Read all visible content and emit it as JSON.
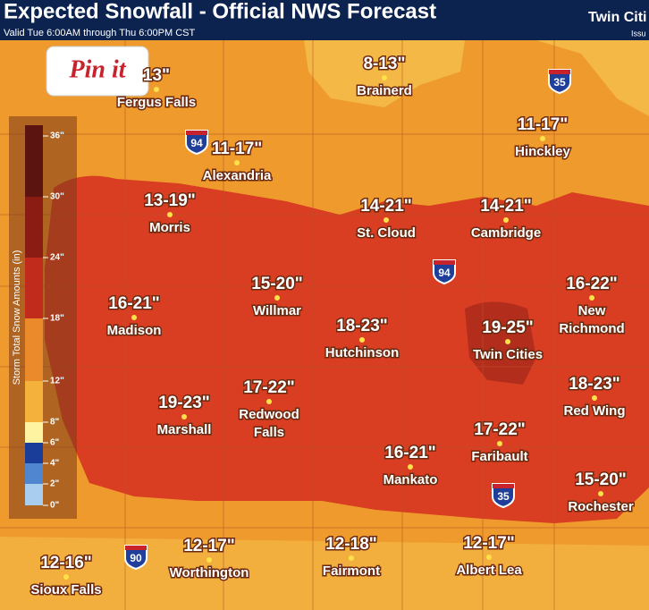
{
  "header": {
    "title": "Expected Snowfall - Official NWS Forecast",
    "subtitle": "Valid Tue 6:00AM through Thu 6:00PM CST",
    "office": "Twin Citi",
    "issued": "Issu"
  },
  "pin": {
    "label": "Pin it"
  },
  "legend": {
    "title": "Storm Total Snow Amounts (in)",
    "labels": [
      "36\"",
      "30\"",
      "24\"",
      "18\"",
      "12\"",
      "8\"",
      "6\"",
      "4\"",
      "2\"",
      "0\""
    ]
  },
  "cities": [
    {
      "forecast": "13\"",
      "name": "Fergus Falls"
    },
    {
      "forecast": "8-13\"",
      "name": "Brainerd"
    },
    {
      "forecast": "11-17\"",
      "name": "Hinckley"
    },
    {
      "forecast": "11-17\"",
      "name": "Alexandria"
    },
    {
      "forecast": "13-19\"",
      "name": "Morris"
    },
    {
      "forecast": "14-21\"",
      "name": "St. Cloud"
    },
    {
      "forecast": "14-21\"",
      "name": "Cambridge"
    },
    {
      "forecast": "15-20\"",
      "name": "Willmar"
    },
    {
      "forecast": "16-22\"",
      "name": [
        "New",
        "Richmond"
      ]
    },
    {
      "forecast": "16-21\"",
      "name": "Madison"
    },
    {
      "forecast": "18-23\"",
      "name": "Hutchinson"
    },
    {
      "forecast": "19-25\"",
      "name": "Twin Cities"
    },
    {
      "forecast": "19-23\"",
      "name": "Marshall"
    },
    {
      "forecast": "17-22\"",
      "name": [
        "Redwood",
        "Falls"
      ]
    },
    {
      "forecast": "18-23\"",
      "name": "Red Wing"
    },
    {
      "forecast": "17-22\"",
      "name": "Faribault"
    },
    {
      "forecast": "16-21\"",
      "name": "Mankato"
    },
    {
      "forecast": "15-20\"",
      "name": "Rochester"
    },
    {
      "forecast": "12-17\"",
      "name": "Worthington"
    },
    {
      "forecast": "12-18\"",
      "name": "Fairmont"
    },
    {
      "forecast": "12-17\"",
      "name": "Albert Lea"
    },
    {
      "forecast": "12-16\"",
      "name": "Sioux Falls"
    }
  ],
  "interstates": [
    "94",
    "35",
    "94",
    "35",
    "90"
  ]
}
